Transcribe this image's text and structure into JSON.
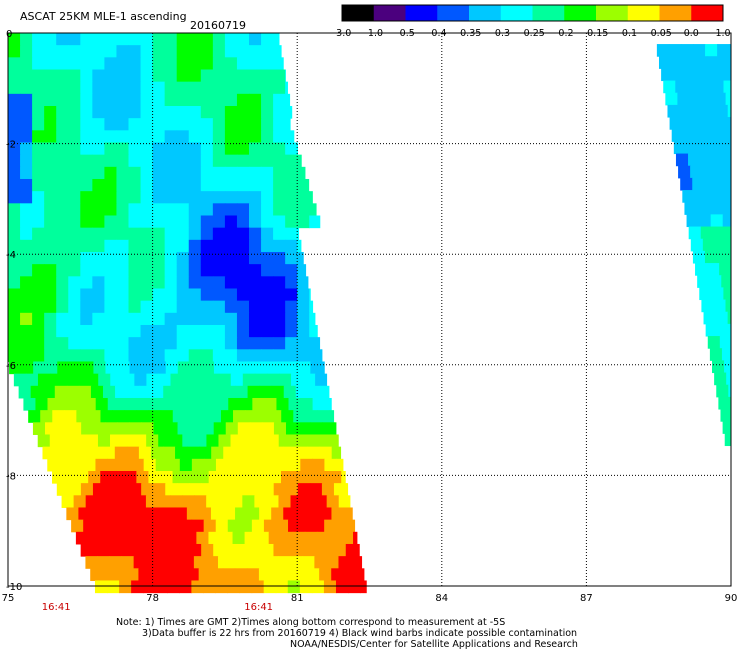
{
  "header": {
    "title": "ASCAT 25KM MLE-1 ascending",
    "date": "20160719"
  },
  "colorbar": {
    "labels": [
      "-3.0",
      "-1.0",
      "-0.5",
      "-0.4",
      "-0.35",
      "-0.3",
      "-0.25",
      "-0.2",
      "-0.15",
      "-0.1",
      "-0.05",
      "0.0",
      "1.0"
    ],
    "colors": [
      "#000000",
      "#4b007e",
      "#0000ff",
      "#0058ff",
      "#00c8ff",
      "#00ffff",
      "#00ff9c",
      "#00ff00",
      "#9cff00",
      "#ffff00",
      "#ffa000",
      "#ff0000"
    ]
  },
  "chart_data": {
    "type": "heatmap",
    "title": "ASCAT 25KM MLE-1 ascending",
    "xlim": [
      75,
      90
    ],
    "ylim": [
      -10,
      0
    ],
    "xticks": [
      "75",
      "78",
      "81",
      "84",
      "87",
      "90"
    ],
    "yticks": [
      "0",
      "-2",
      "-4",
      "-6",
      "-8",
      "-10"
    ],
    "grid": true,
    "times": [
      {
        "lon": 76,
        "label": "16:41"
      },
      {
        "lon": 80.2,
        "label": "16:41"
      }
    ],
    "swaths": [
      {
        "name": "west",
        "lon_range": [
          75.0,
          82.6
        ],
        "lat_range": [
          -10,
          0
        ],
        "dominant_values": "blue to green to orange going south"
      },
      {
        "name": "east",
        "lon_range": [
          88.4,
          90.0
        ],
        "lat_range": [
          -7.4,
          -0.2
        ],
        "dominant_values": "cyan to green"
      }
    ]
  },
  "notes": {
    "line1": "Note: 1) Times are GMT 2)Times along bottom correspond to measurement at -5S",
    "line2": "3)Data buffer is 22 hrs from 20160719 4) Black wind barbs indicate possible contamination",
    "line3": "NOAA/NESDIS/Center for Satellite Applications and Research"
  }
}
